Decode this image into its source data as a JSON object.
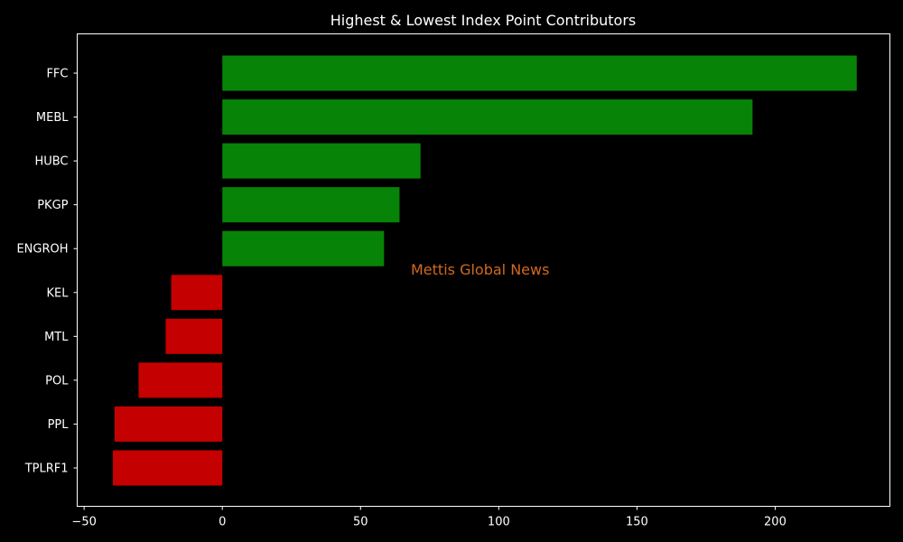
{
  "chart_data": {
    "type": "bar",
    "orientation": "horizontal",
    "title": "Highest & Lowest Index Point Contributors",
    "xlabel": "",
    "ylabel": "",
    "categories": [
      "FFC",
      "MEBL",
      "HUBC",
      "PKGP",
      "ENGROH",
      "KEL",
      "MTL",
      "POL",
      "PPL",
      "TPLRF1"
    ],
    "values": [
      229.5,
      191.8,
      71.7,
      64.1,
      58.5,
      -18.5,
      -20.5,
      -30.3,
      -39.0,
      -39.6
    ],
    "xlim": [
      -52.5,
      241.5
    ],
    "xticks": [
      -50,
      0,
      50,
      100,
      150,
      200
    ],
    "grid": false,
    "legend": "none",
    "colors": {
      "positive": "#078307",
      "negative": "#c40000",
      "background": "#000000",
      "text": "#ffffff",
      "watermark": "#d2691e"
    },
    "annotations": [
      {
        "text": "Mettis Global News"
      }
    ]
  }
}
